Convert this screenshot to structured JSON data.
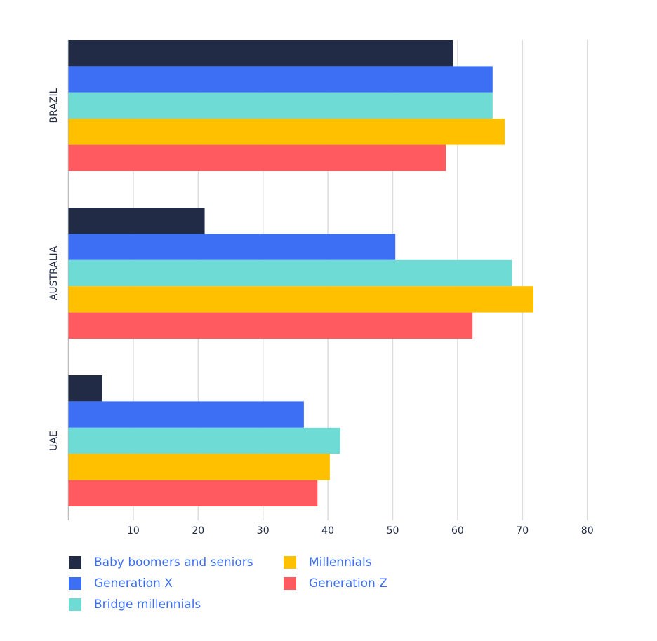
{
  "chart_data": {
    "type": "bar",
    "orientation": "horizontal",
    "categories": [
      "BRAZIL",
      "AUSTRALIA",
      "UAE"
    ],
    "series": [
      {
        "name": "Baby boomers and seniors",
        "color": "#222b45",
        "values": [
          59.3,
          21.0,
          5.2
        ]
      },
      {
        "name": "Generation X",
        "color": "#3d6ff5",
        "values": [
          65.4,
          50.4,
          36.3
        ]
      },
      {
        "name": "Bridge millennials",
        "color": "#6fdbd5",
        "values": [
          65.4,
          68.4,
          41.9
        ]
      },
      {
        "name": "Millennials",
        "color": "#ffc000",
        "values": [
          67.3,
          71.7,
          40.3
        ]
      },
      {
        "name": "Generation Z",
        "color": "#ff5a5f",
        "values": [
          58.2,
          62.3,
          38.4
        ]
      }
    ],
    "xlim": [
      0,
      80
    ],
    "xticks": [
      10,
      20,
      30,
      40,
      50,
      60,
      70,
      80
    ],
    "grid": true
  }
}
